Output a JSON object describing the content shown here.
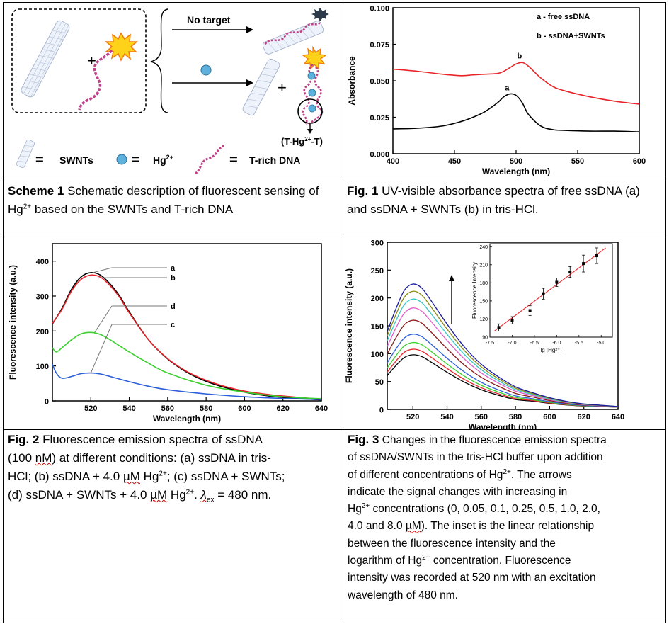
{
  "scheme1": {
    "no_target_label": "No target",
    "eq_swnts": "SWNTs",
    "eq_hg": "Hg",
    "eq_hg_sup": "2+",
    "eq_dna": "T-rich DNA",
    "complex_label": "(T-Hg",
    "complex_sup": "2+",
    "complex_tail": "-T)",
    "eq_sign": "=",
    "plus": "+",
    "caption_bold": "Scheme 1",
    "caption_a": " Schematic description of fluorescent sensing of Hg",
    "caption_sup": "2+",
    "caption_b": " based on the SWNTs and T-rich DNA"
  },
  "fig1": {
    "caption_bold": "Fig. 1",
    "caption_text": " UV-visible absorbance spectra of free ssDNA (a) and ssDNA + SWNTs (b) in tris-HCl.",
    "chart_data": {
      "type": "line",
      "title": "",
      "xlabel": "Wavelength (nm)",
      "ylabel": "Absorbance",
      "xlim": [
        400,
        600
      ],
      "ylim": [
        0,
        0.1
      ],
      "xticks": [
        "400",
        "450",
        "500",
        "550",
        "600"
      ],
      "yticks": [
        "0.000",
        "0.025",
        "0.050",
        "0.075",
        "0.100"
      ],
      "legend": [
        "a - free ssDNA",
        "b - ssDNA+SWNTs"
      ],
      "series": [
        {
          "name": "a",
          "color": "#000000",
          "x": [
            400,
            420,
            440,
            455,
            465,
            475,
            485,
            490,
            495,
            500,
            505,
            510,
            520,
            530,
            540,
            560,
            580,
            600
          ],
          "y": [
            0.017,
            0.0175,
            0.019,
            0.022,
            0.025,
            0.029,
            0.035,
            0.039,
            0.041,
            0.04,
            0.035,
            0.027,
            0.019,
            0.0165,
            0.016,
            0.0155,
            0.0155,
            0.015
          ]
        },
        {
          "name": "b",
          "color": "#e8242a",
          "x": [
            400,
            420,
            440,
            455,
            465,
            475,
            485,
            490,
            495,
            500,
            505,
            510,
            520,
            530,
            540,
            560,
            580,
            600
          ],
          "y": [
            0.058,
            0.0565,
            0.0545,
            0.0535,
            0.054,
            0.0545,
            0.055,
            0.0565,
            0.059,
            0.0615,
            0.0625,
            0.06,
            0.052,
            0.046,
            0.043,
            0.039,
            0.036,
            0.034
          ]
        }
      ],
      "point_labels": [
        "a",
        "b"
      ]
    }
  },
  "fig2": {
    "caption_bold": "Fig. 2",
    "caption_l1": " Fluorescence emission spectra of ssDNA",
    "caption_l2a": "(100 ",
    "caption_l2b": "nM",
    "caption_l2c": ") at different conditions: (a) ssDNA in tris-",
    "caption_l3a": "HCl; (b) ssDNA + 4.0 ",
    "caption_l3b": "µM",
    "caption_l3c": " Hg",
    "caption_l3sup": "2+",
    "caption_l3d": "; (c) ssDNA + SWNTs;",
    "caption_l4a": "(d) ssDNA + SWNTs + 4.0 ",
    "caption_l4b": "µM",
    "caption_l4c": " Hg",
    "caption_l4sup": "2+",
    "caption_l4d": ". ",
    "caption_l4e": "λ",
    "caption_l4sub": "ex",
    "caption_l4f": " = 480 nm.",
    "chart_data": {
      "type": "line",
      "xlabel": "Wavelength (nm)",
      "ylabel": "Fluorescence intensity (a.u.)",
      "xlim": [
        500,
        640
      ],
      "ylim": [
        0,
        450
      ],
      "xticks": [
        "520",
        "540",
        "560",
        "580",
        "600",
        "620",
        "640"
      ],
      "yticks": [
        "0",
        "100",
        "200",
        "300",
        "400"
      ],
      "legend": [
        "a",
        "b",
        "d",
        "c"
      ],
      "series": [
        {
          "name": "a",
          "color": "#000000",
          "x": [
            500,
            505,
            510,
            515,
            520,
            525,
            530,
            535,
            540,
            550,
            560,
            570,
            580,
            590,
            600,
            610,
            620,
            630,
            640
          ],
          "y": [
            220,
            265,
            320,
            355,
            367,
            360,
            335,
            300,
            255,
            175,
            120,
            82,
            56,
            38,
            25,
            16,
            10,
            6,
            3
          ]
        },
        {
          "name": "b",
          "color": "#e8242a",
          "x": [
            500,
            505,
            510,
            515,
            520,
            525,
            530,
            535,
            540,
            550,
            560,
            570,
            580,
            590,
            600,
            610,
            620,
            630,
            640
          ],
          "y": [
            222,
            262,
            315,
            348,
            360,
            354,
            330,
            296,
            252,
            175,
            121,
            84,
            59,
            41,
            28,
            20,
            14,
            9,
            5
          ]
        },
        {
          "name": "c",
          "color": "#2b5ed8",
          "x": [
            500,
            502,
            505,
            510,
            515,
            520,
            525,
            530,
            540,
            550,
            560,
            580,
            600,
            620,
            640
          ],
          "y": [
            105,
            80,
            65,
            70,
            78,
            80,
            77,
            70,
            55,
            42,
            32,
            20,
            12,
            7,
            4
          ]
        },
        {
          "name": "d",
          "color": "#3ad12e",
          "x": [
            500,
            502,
            505,
            510,
            515,
            520,
            525,
            530,
            540,
            550,
            560,
            580,
            600,
            620,
            640
          ],
          "y": [
            152,
            140,
            152,
            175,
            192,
            196,
            190,
            175,
            140,
            108,
            80,
            45,
            25,
            12,
            6
          ]
        }
      ]
    }
  },
  "fig3": {
    "caption_bold": "Fig. 3",
    "caption_l1": " Changes in the fluorescence emission spectra",
    "caption_l2": "of ssDNA/SWNTs in the tris-HCl buffer upon addition",
    "caption_l3a": "of different concentrations of Hg",
    "caption_l3sup": "2+",
    "caption_l3b": ". The arrows",
    "caption_l4": "indicate the signal changes with increasing in",
    "caption_l5a": "Hg",
    "caption_l5sup": "2+",
    "caption_l5b": " concentrations (0, 0.05, 0.1, 0.25, 0.5, 1.0, 2.0,",
    "caption_l6a": "4.0 and 8.0 ",
    "caption_l6b": "µM",
    "caption_l6c": "). The inset is the linear relationship",
    "caption_l7": "between the fluorescence intensity and the",
    "caption_l8a": "logarithm of Hg",
    "caption_l8sup": "2+",
    "caption_l8b": " concentration. Fluorescence",
    "caption_l9": "intensity was recorded at 520 nm with an excitation",
    "caption_l10": "wavelength of 480 nm.",
    "chart_data": {
      "type": "line",
      "xlabel": "Wavelength (nm)",
      "ylabel": "Fluorescence intensity (a.u.)",
      "xlim": [
        505,
        640
      ],
      "ylim": [
        0,
        300
      ],
      "xticks": [
        "520",
        "540",
        "560",
        "580",
        "600",
        "620",
        "640"
      ],
      "yticks": [
        "0",
        "50",
        "100",
        "150",
        "200",
        "250",
        "300"
      ],
      "x": [
        505,
        510,
        515,
        520,
        525,
        530,
        540,
        550,
        560,
        570,
        580,
        590,
        600,
        610,
        620,
        630,
        640
      ],
      "shape": [
        0.62,
        0.8,
        0.95,
        1.0,
        0.97,
        0.88,
        0.68,
        0.5,
        0.36,
        0.26,
        0.18,
        0.12,
        0.08,
        0.05,
        0.03,
        0.02,
        0.01
      ],
      "series": [
        {
          "name": "0",
          "color": "#000000",
          "peak": 98
        },
        {
          "name": "0.05",
          "color": "#e8242a",
          "peak": 108
        },
        {
          "name": "0.1",
          "color": "#3ad12e",
          "peak": 120
        },
        {
          "name": "0.25",
          "color": "#2b5ed8",
          "peak": 135
        },
        {
          "name": "0.5",
          "color": "#8b1a1a",
          "peak": 160
        },
        {
          "name": "1.0",
          "color": "#e05cc8",
          "peak": 182
        },
        {
          "name": "2.0",
          "color": "#38c7c7",
          "peak": 198
        },
        {
          "name": "4.0",
          "color": "#8a8a10",
          "peak": 212
        },
        {
          "name": "8.0",
          "color": "#1a1aa0",
          "peak": 225
        }
      ],
      "inset": {
        "type": "scatter",
        "xlabel": "lg [Hg²⁺]",
        "ylabel": "Fluorescence Intensity",
        "xlim": [
          -7.5,
          -4.75
        ],
        "ylim": [
          90,
          245
        ],
        "xticks": [
          "-7.5",
          "-7.0",
          "-6.5",
          "-6.0",
          "-5.5",
          "-5.0"
        ],
        "yticks": [
          "90",
          "120",
          "150",
          "180",
          "210",
          "240"
        ],
        "points": [
          [
            -7.3,
            106
          ],
          [
            -7.0,
            118
          ],
          [
            -6.6,
            134
          ],
          [
            -6.3,
            162
          ],
          [
            -6.0,
            181
          ],
          [
            -5.7,
            198
          ],
          [
            -5.4,
            212
          ],
          [
            -5.1,
            225
          ]
        ],
        "errors": [
          6,
          6,
          8,
          9,
          7,
          9,
          14,
          13
        ],
        "fit": [
          [
            -7.4,
            100
          ],
          [
            -4.9,
            238
          ]
        ]
      }
    }
  }
}
